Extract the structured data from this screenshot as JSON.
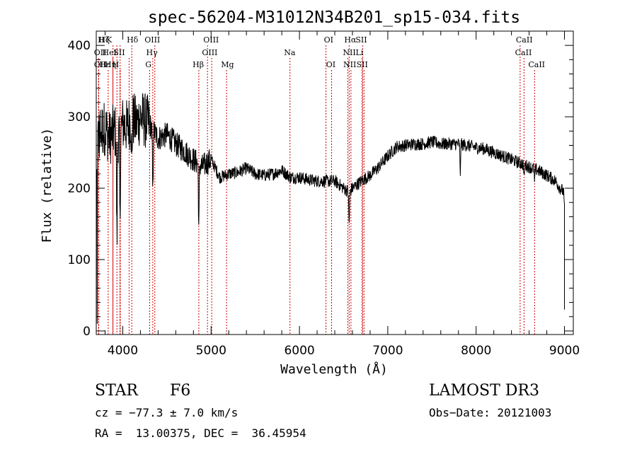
{
  "chart_data": {
    "type": "line",
    "title": "spec-56204-M31012N34B201_sp15-034.fits",
    "xlabel": "Wavelength (Å)",
    "ylabel": "Flux (relative)",
    "xlim": [
      3700,
      9100
    ],
    "ylim": [
      -5,
      420
    ],
    "xticks": [
      4000,
      5000,
      6000,
      7000,
      8000,
      9000
    ],
    "yticks": [
      0,
      100,
      200,
      300,
      400
    ],
    "spectrum_anchors": [
      [
        3700,
        180
      ],
      [
        3720,
        270
      ],
      [
        3760,
        280
      ],
      [
        3800,
        285
      ],
      [
        3850,
        270
      ],
      [
        3900,
        280
      ],
      [
        3950,
        275
      ],
      [
        4000,
        290
      ],
      [
        4050,
        285
      ],
      [
        4100,
        300
      ],
      [
        4150,
        290
      ],
      [
        4200,
        300
      ],
      [
        4300,
        290
      ],
      [
        4400,
        270
      ],
      [
        4500,
        275
      ],
      [
        4600,
        262
      ],
      [
        4700,
        252
      ],
      [
        4800,
        240
      ],
      [
        4900,
        230
      ],
      [
        5000,
        240
      ],
      [
        5100,
        215
      ],
      [
        5200,
        220
      ],
      [
        5300,
        222
      ],
      [
        5400,
        228
      ],
      [
        5500,
        220
      ],
      [
        5600,
        218
      ],
      [
        5700,
        220
      ],
      [
        5800,
        225
      ],
      [
        5900,
        215
      ],
      [
        6000,
        215
      ],
      [
        6100,
        212
      ],
      [
        6200,
        210
      ],
      [
        6300,
        210
      ],
      [
        6400,
        210
      ],
      [
        6500,
        200
      ],
      [
        6560,
        195
      ],
      [
        6600,
        200
      ],
      [
        6700,
        210
      ],
      [
        6800,
        218
      ],
      [
        6900,
        230
      ],
      [
        7000,
        245
      ],
      [
        7100,
        258
      ],
      [
        7200,
        260
      ],
      [
        7300,
        262
      ],
      [
        7400,
        262
      ],
      [
        7500,
        265
      ],
      [
        7600,
        262
      ],
      [
        7700,
        262
      ],
      [
        7800,
        262
      ],
      [
        7900,
        260
      ],
      [
        8000,
        257
      ],
      [
        8100,
        255
      ],
      [
        8200,
        250
      ],
      [
        8300,
        245
      ],
      [
        8400,
        240
      ],
      [
        8500,
        235
      ],
      [
        8600,
        230
      ],
      [
        8700,
        225
      ],
      [
        8800,
        218
      ],
      [
        8900,
        210
      ],
      [
        8950,
        200
      ],
      [
        8990,
        195
      ],
      [
        9000,
        170
      ]
    ],
    "absorption_features": [
      {
        "wavelength": 3934,
        "depth": 150,
        "width": 6
      },
      {
        "wavelength": 3969,
        "depth": 140,
        "width": 6
      },
      {
        "wavelength": 4102,
        "depth": 70,
        "width": 6
      },
      {
        "wavelength": 4340,
        "depth": 90,
        "width": 6
      },
      {
        "wavelength": 4861,
        "depth": 90,
        "width": 6
      },
      {
        "wavelength": 6563,
        "depth": 45,
        "width": 7
      },
      {
        "wavelength": 7820,
        "depth": 45,
        "width": 5
      },
      {
        "wavelength": 8542,
        "depth": 20,
        "width": 5
      },
      {
        "wavelength": 8662,
        "depth": 20,
        "width": 5
      }
    ],
    "spectral_lines": [
      {
        "label": "H",
        "wavelength": 3970,
        "row": 0,
        "lw": 3755
      },
      {
        "label": "Hζ",
        "wavelength": 3889,
        "row": 0,
        "lw": 3790
      },
      {
        "label": "K",
        "wavelength": 3934,
        "row": 0,
        "lw": 3845
      },
      {
        "label": "Hδ",
        "wavelength": 4102,
        "row": 0,
        "lw": 4110
      },
      {
        "label": "OIII",
        "wavelength": 4363,
        "row": 0,
        "lw": 4335
      },
      {
        "label": "OIII",
        "wavelength": 4959,
        "row": 0,
        "lw": 5000
      },
      {
        "label": "OI",
        "wavelength": 6300,
        "row": 0,
        "lw": 6330
      },
      {
        "label": "Hα",
        "wavelength": 6563,
        "row": 0,
        "lw": 6575
      },
      {
        "label": "SII",
        "wavelength": 6717,
        "row": 0,
        "lw": 6700
      },
      {
        "label": "CaII",
        "wavelength": 8498,
        "row": 0,
        "lw": 8545
      },
      {
        "label": "OII",
        "wavelength": 3727,
        "row": 1,
        "lw": 3745
      },
      {
        "label": "HeI",
        "wavelength": 3889,
        "row": 1,
        "lw": 3850
      },
      {
        "label": "SII",
        "wavelength": 4072,
        "row": 1,
        "lw": 3960
      },
      {
        "label": "Hγ",
        "wavelength": 4340,
        "row": 1,
        "lw": 4330
      },
      {
        "label": "OIII",
        "wavelength": 5007,
        "row": 1,
        "lw": 4985
      },
      {
        "label": "Na",
        "wavelength": 5893,
        "row": 1,
        "lw": 5890
      },
      {
        "label": "NII",
        "wavelength": 6548,
        "row": 1,
        "lw": 6565
      },
      {
        "label": "Li",
        "wavelength": 6708,
        "row": 1,
        "lw": 6680
      },
      {
        "label": "CaII",
        "wavelength": 8542,
        "row": 1,
        "lw": 8535
      },
      {
        "label": "OII",
        "wavelength": 3727,
        "row": 2,
        "lw": 3745
      },
      {
        "label": "Hε",
        "wavelength": 3970,
        "row": 2,
        "lw": 3795
      },
      {
        "label": "Hη",
        "wavelength": 3835,
        "row": 2,
        "lw": 3860
      },
      {
        "label": "H",
        "wavelength": 3970,
        "row": 2,
        "lw": 3920
      },
      {
        "label": "G",
        "wavelength": 4304,
        "row": 2,
        "lw": 4290
      },
      {
        "label": "Hβ",
        "wavelength": 4861,
        "row": 2,
        "lw": 4855
      },
      {
        "label": "Mg",
        "wavelength": 5175,
        "row": 2,
        "lw": 5185
      },
      {
        "label": "OI",
        "wavelength": 6364,
        "row": 2,
        "lw": 6355
      },
      {
        "label": "NII",
        "wavelength": 6583,
        "row": 2,
        "lw": 6570
      },
      {
        "label": "SII",
        "wavelength": 6731,
        "row": 2,
        "lw": 6710
      },
      {
        "label": "CaII",
        "wavelength": 8662,
        "row": 2,
        "lw": 8685
      }
    ]
  },
  "info": {
    "class": "STAR",
    "subclass": "F6",
    "survey": "LAMOST DR3",
    "cz": "cz = −77.3 ± 7.0 km/s",
    "obs_date": "Obs−Date: 20121003",
    "coords": "RA =  13.00375, DEC =  36.45954"
  },
  "colors": {
    "line": "#000000",
    "marker": "#cc0000"
  }
}
